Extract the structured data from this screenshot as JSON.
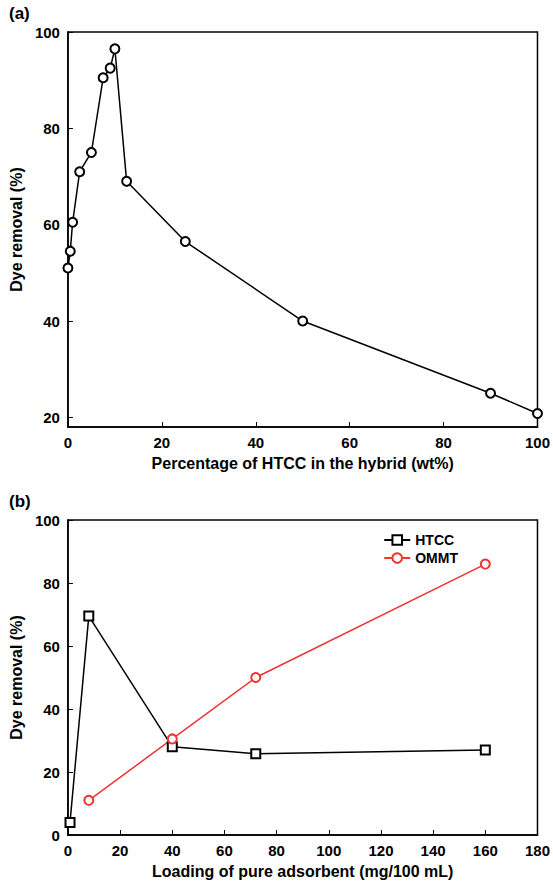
{
  "chart_data": [
    {
      "type": "line",
      "title": "(a)",
      "x_label": "Percentage of HTCC in the hybrid (wt%)",
      "y_label": "Dye removal (%)",
      "x": [
        0,
        0.5,
        1,
        2.5,
        5,
        7.5,
        9,
        10,
        12.5,
        25,
        50,
        90,
        100
      ],
      "values": [
        51,
        54.5,
        60.5,
        71,
        75,
        90.5,
        92.5,
        96.5,
        69,
        56.5,
        40,
        25,
        20.8
      ],
      "color": "#000000",
      "marker": "circle",
      "xlim": [
        0,
        100
      ],
      "xticks": [
        0,
        20,
        40,
        60,
        80,
        100
      ],
      "ylim": [
        18,
        100
      ],
      "yticks": [
        20,
        40,
        60,
        80,
        100
      ],
      "grid": false
    },
    {
      "type": "line",
      "title": "(b)",
      "x_label": "Loading of pure adsorbent (mg/100 mL)",
      "y_label": "Dye removal (%)",
      "series": [
        {
          "name": "HTCC",
          "color": "#000000",
          "marker": "square",
          "x": [
            0.8,
            8,
            40,
            72,
            160
          ],
          "values": [
            4,
            69.5,
            28,
            25.8,
            27
          ]
        },
        {
          "name": "OMMT",
          "color": "#ee3333",
          "marker": "circle",
          "x": [
            8,
            40,
            72,
            160
          ],
          "values": [
            11,
            30.5,
            50,
            86
          ]
        }
      ],
      "xlim": [
        0,
        180
      ],
      "xticks": [
        0,
        20,
        40,
        60,
        80,
        100,
        120,
        140,
        160,
        180
      ],
      "ylim": [
        0,
        100
      ],
      "yticks": [
        0,
        20,
        40,
        60,
        80,
        100
      ],
      "grid": false,
      "legend": "upper right"
    }
  ]
}
